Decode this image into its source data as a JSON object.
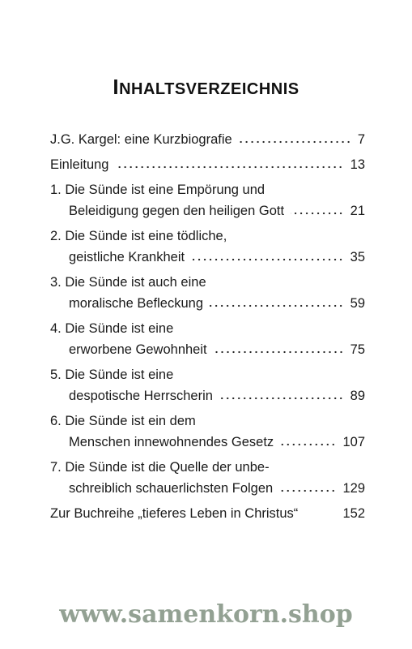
{
  "header": {
    "title": "INHALTSVERZEICHNIS"
  },
  "entries": [
    {
      "lines": [
        "J.G. Kargel: eine Kurzbiografie"
      ],
      "page": "7"
    },
    {
      "lines": [
        "Einleitung"
      ],
      "page": "13"
    },
    {
      "lines": [
        "1. Die Sünde ist eine Empörung und",
        "Beleidigung gegen den heiligen Gott"
      ],
      "page": "21"
    },
    {
      "lines": [
        "2. Die Sünde ist eine tödliche,",
        "geistliche Krankheit"
      ],
      "page": "35"
    },
    {
      "lines": [
        "3. Die Sünde ist auch eine",
        "moralische Befleckung"
      ],
      "page": "59"
    },
    {
      "lines": [
        "4. Die Sünde ist eine",
        "erworbene Gewohnheit"
      ],
      "page": "75"
    },
    {
      "lines": [
        "5. Die Sünde ist eine",
        "despotische Herrscherin"
      ],
      "page": "89"
    },
    {
      "lines": [
        "6. Die Sünde ist ein dem",
        "Menschen innewohnendes Gesetz"
      ],
      "page": "107"
    },
    {
      "lines": [
        "7. Die Sünde ist die Quelle der unbe-",
        "schreiblich schauerlichsten Folgen"
      ],
      "page": "129"
    },
    {
      "lines": [
        "Zur Buchreihe „tieferes Leben in Christus“"
      ],
      "page": "152"
    }
  ],
  "footer": {
    "url": "www.samenkorn.shop"
  }
}
